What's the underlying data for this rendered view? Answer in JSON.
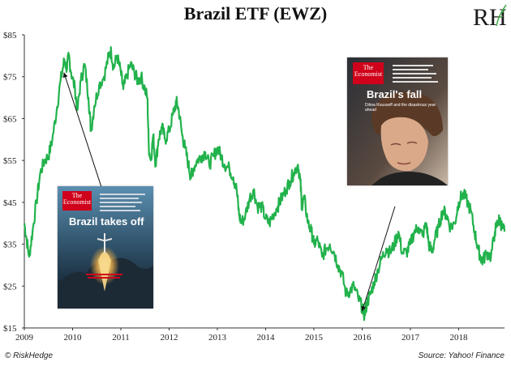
{
  "title": "Brazil ETF (EWZ)",
  "logo_text": "RH",
  "footer": {
    "left": "© RiskHedge",
    "right": "Source: Yahoo! Finance"
  },
  "covers": [
    {
      "masthead_line1": "The",
      "masthead_line2": "Economist",
      "headline": "Brazil takes off"
    },
    {
      "masthead_line1": "The",
      "masthead_line2": "Economist",
      "headline": "Brazil's fall",
      "subheadline": "Dilma Rousseff and the disastrous year ahead"
    }
  ],
  "colors": {
    "line": "#22b24c",
    "axis": "#333333",
    "cover_red": "#d0021b"
  },
  "chart_data": {
    "type": "line",
    "title": "Brazil ETF (EWZ)",
    "xlabel": "",
    "ylabel": "",
    "x_ticks": [
      "2009",
      "2010",
      "2011",
      "2012",
      "2013",
      "2014",
      "2015",
      "2016",
      "2017",
      "2018"
    ],
    "y_ticks": [
      "$15",
      "$25",
      "$35",
      "$45",
      "$55",
      "$65",
      "$75",
      "$85"
    ],
    "xlim": [
      2009.0,
      2018.95
    ],
    "ylim": [
      15,
      85
    ],
    "grid": false,
    "series": [
      {
        "values": [
          [
            2009.0,
            40
          ],
          [
            2009.05,
            36
          ],
          [
            2009.1,
            32
          ],
          [
            2009.17,
            38
          ],
          [
            2009.25,
            45
          ],
          [
            2009.33,
            52
          ],
          [
            2009.42,
            55
          ],
          [
            2009.5,
            56
          ],
          [
            2009.58,
            60
          ],
          [
            2009.67,
            67
          ],
          [
            2009.75,
            74
          ],
          [
            2009.83,
            79
          ],
          [
            2009.88,
            77
          ],
          [
            2009.92,
            80
          ],
          [
            2009.97,
            76
          ],
          [
            2010.05,
            72
          ],
          [
            2010.1,
            67
          ],
          [
            2010.17,
            74
          ],
          [
            2010.25,
            78
          ],
          [
            2010.33,
            70
          ],
          [
            2010.38,
            62
          ],
          [
            2010.45,
            68
          ],
          [
            2010.55,
            73
          ],
          [
            2010.65,
            75
          ],
          [
            2010.75,
            80
          ],
          [
            2010.8,
            81
          ],
          [
            2010.85,
            77
          ],
          [
            2010.92,
            80
          ],
          [
            2011.0,
            76
          ],
          [
            2011.05,
            72
          ],
          [
            2011.12,
            75
          ],
          [
            2011.2,
            78
          ],
          [
            2011.28,
            76
          ],
          [
            2011.35,
            74
          ],
          [
            2011.42,
            75
          ],
          [
            2011.5,
            72
          ],
          [
            2011.55,
            70
          ],
          [
            2011.58,
            58
          ],
          [
            2011.62,
            55
          ],
          [
            2011.67,
            61
          ],
          [
            2011.72,
            54
          ],
          [
            2011.78,
            60
          ],
          [
            2011.85,
            63
          ],
          [
            2011.92,
            60
          ],
          [
            2012.0,
            62
          ],
          [
            2012.08,
            66
          ],
          [
            2012.15,
            69
          ],
          [
            2012.2,
            67
          ],
          [
            2012.27,
            61
          ],
          [
            2012.33,
            58
          ],
          [
            2012.4,
            54
          ],
          [
            2012.45,
            51
          ],
          [
            2012.5,
            53
          ],
          [
            2012.58,
            55
          ],
          [
            2012.67,
            56
          ],
          [
            2012.75,
            57
          ],
          [
            2012.83,
            54
          ],
          [
            2012.92,
            56
          ],
          [
            2013.0,
            58
          ],
          [
            2013.08,
            56
          ],
          [
            2013.15,
            54
          ],
          [
            2013.25,
            53
          ],
          [
            2013.33,
            51
          ],
          [
            2013.4,
            48
          ],
          [
            2013.45,
            42
          ],
          [
            2013.5,
            40
          ],
          [
            2013.58,
            42
          ],
          [
            2013.67,
            46
          ],
          [
            2013.75,
            48
          ],
          [
            2013.83,
            44
          ],
          [
            2013.92,
            44
          ],
          [
            2014.0,
            41
          ],
          [
            2014.08,
            40
          ],
          [
            2014.15,
            42
          ],
          [
            2014.25,
            44
          ],
          [
            2014.33,
            46
          ],
          [
            2014.42,
            48
          ],
          [
            2014.5,
            50
          ],
          [
            2014.58,
            52
          ],
          [
            2014.67,
            54
          ],
          [
            2014.72,
            50
          ],
          [
            2014.75,
            44
          ],
          [
            2014.8,
            46
          ],
          [
            2014.88,
            40
          ],
          [
            2014.95,
            38
          ],
          [
            2015.0,
            35
          ],
          [
            2015.08,
            36
          ],
          [
            2015.17,
            32
          ],
          [
            2015.25,
            34
          ],
          [
            2015.33,
            35
          ],
          [
            2015.42,
            33
          ],
          [
            2015.5,
            30
          ],
          [
            2015.58,
            28
          ],
          [
            2015.67,
            23
          ],
          [
            2015.75,
            24
          ],
          [
            2015.83,
            25
          ],
          [
            2015.92,
            22
          ],
          [
            2016.0,
            20
          ],
          [
            2016.05,
            18
          ],
          [
            2016.1,
            21
          ],
          [
            2016.17,
            23
          ],
          [
            2016.25,
            26
          ],
          [
            2016.33,
            29
          ],
          [
            2016.42,
            32
          ],
          [
            2016.5,
            34
          ],
          [
            2016.58,
            33
          ],
          [
            2016.67,
            35
          ],
          [
            2016.75,
            38
          ],
          [
            2016.83,
            33
          ],
          [
            2016.92,
            33
          ],
          [
            2017.0,
            35
          ],
          [
            2017.08,
            38
          ],
          [
            2017.17,
            39
          ],
          [
            2017.25,
            37
          ],
          [
            2017.33,
            40
          ],
          [
            2017.38,
            35
          ],
          [
            2017.45,
            33
          ],
          [
            2017.5,
            36
          ],
          [
            2017.58,
            39
          ],
          [
            2017.67,
            43
          ],
          [
            2017.75,
            42
          ],
          [
            2017.83,
            39
          ],
          [
            2017.92,
            40
          ],
          [
            2018.0,
            45
          ],
          [
            2018.08,
            47
          ],
          [
            2018.15,
            46
          ],
          [
            2018.25,
            43
          ],
          [
            2018.33,
            38
          ],
          [
            2018.4,
            34
          ],
          [
            2018.45,
            32
          ],
          [
            2018.5,
            31
          ],
          [
            2018.58,
            33
          ],
          [
            2018.67,
            32
          ],
          [
            2018.75,
            38
          ],
          [
            2018.8,
            40
          ],
          [
            2018.85,
            41
          ],
          [
            2018.9,
            39
          ],
          [
            2018.95,
            38
          ]
        ]
      }
    ],
    "annotations": [
      {
        "from_year": 2010.7,
        "from_value": 45,
        "to_year": 2009.82,
        "to_value": 76
      },
      {
        "from_year": 2016.68,
        "from_value": 44,
        "to_year": 2016.0,
        "to_value": 19
      }
    ]
  }
}
